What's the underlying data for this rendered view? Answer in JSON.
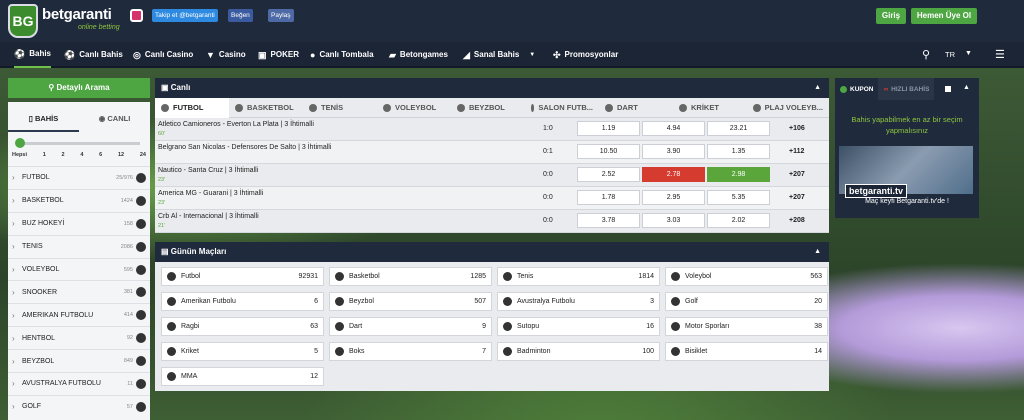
{
  "brand": {
    "name": "betgaranti",
    "tagline": "online betting",
    "badge": "BG"
  },
  "social": {
    "twitter": "Takip et @betgaranti",
    "facebook": "Beğen",
    "share": "Paylaş"
  },
  "auth": {
    "login": "Giriş",
    "register": "Hemen Üye Ol"
  },
  "nav": {
    "items": [
      "Bahis",
      "Canlı Bahis",
      "Canlı Casino",
      "Casino",
      "POKER",
      "Canlı Tombala",
      "Betongames",
      "Sanal Bahis",
      "Promosyonlar"
    ],
    "lang": "TR"
  },
  "left": {
    "search": "Detaylı Arama",
    "tabs": [
      "BAHİS",
      "CANLI"
    ],
    "ticks": [
      "Hepsi",
      "1",
      "2",
      "4",
      "6",
      "12",
      "24"
    ],
    "sports": [
      {
        "name": "FUTBOL",
        "count": "25/976"
      },
      {
        "name": "BASKETBOL",
        "count": "1424"
      },
      {
        "name": "BUZ HOKEYİ",
        "count": "158"
      },
      {
        "name": "TENIS",
        "count": "2086"
      },
      {
        "name": "VOLEYBOL",
        "count": "595"
      },
      {
        "name": "SNOOKER",
        "count": "381"
      },
      {
        "name": "AMERIKAN FUTBOLU",
        "count": "414"
      },
      {
        "name": "HENTBOL",
        "count": "92"
      },
      {
        "name": "BEYZBOL",
        "count": "849"
      },
      {
        "name": "AVUSTRALYA FUTBOLU",
        "count": "11"
      },
      {
        "name": "GOLF",
        "count": "57"
      }
    ]
  },
  "live": {
    "title": "Canlı",
    "tabs": [
      "FUTBOL",
      "BASKETBOL",
      "TENİS",
      "VOLEYBOL",
      "BEYZBOL",
      "SALON FUTB...",
      "DART",
      "KRİKET",
      "PLAJ VOLEYB..."
    ],
    "matches": [
      {
        "name": "Atletico Camioneros - Everton La Plata | 3 İhtimalli",
        "minute": "60'",
        "score": "1:0",
        "odds": [
          "1.19",
          "4.94",
          "23.21"
        ],
        "more": "+106"
      },
      {
        "name": "Belgrano San Nicolas - Defensores De Salto | 3 İhtimalli",
        "minute": "",
        "score": "0:1",
        "odds": [
          "10.50",
          "3.90",
          "1.35"
        ],
        "more": "+112"
      },
      {
        "name": "Nautico - Santa Cruz | 3 İhtimalli",
        "minute": "23'",
        "score": "0:0",
        "odds": [
          "2.52",
          "2.78",
          "2.98"
        ],
        "more": "+207"
      },
      {
        "name": "America MG - Guarani | 3 İhtimalli",
        "minute": "23'",
        "score": "0:0",
        "odds": [
          "1.78",
          "2.95",
          "5.35"
        ],
        "more": "+207"
      },
      {
        "name": "Crb Al - Internacional | 3 İhtimalli",
        "minute": "21'",
        "score": "0:0",
        "odds": [
          "3.78",
          "3.03",
          "2.02"
        ],
        "more": "+208"
      }
    ]
  },
  "today": {
    "title": "Günün Maçları",
    "items": [
      {
        "name": "Futbol",
        "count": "92931"
      },
      {
        "name": "Basketbol",
        "count": "1285"
      },
      {
        "name": "Tenis",
        "count": "1814"
      },
      {
        "name": "Voleybol",
        "count": "563"
      },
      {
        "name": "Amerikan Futbolu",
        "count": "6"
      },
      {
        "name": "Beyzbol",
        "count": "507"
      },
      {
        "name": "Avustralya Futbolu",
        "count": "3"
      },
      {
        "name": "Golf",
        "count": "20"
      },
      {
        "name": "Ragbi",
        "count": "63"
      },
      {
        "name": "Dart",
        "count": "9"
      },
      {
        "name": "Sutopu",
        "count": "16"
      },
      {
        "name": "Motor Sporları",
        "count": "38"
      },
      {
        "name": "Kriket",
        "count": "5"
      },
      {
        "name": "Boks",
        "count": "7"
      },
      {
        "name": "Badminton",
        "count": "100"
      },
      {
        "name": "Bisiklet",
        "count": "14"
      },
      {
        "name": "MMA",
        "count": "12"
      }
    ]
  },
  "coupon": {
    "tabs": [
      "KUPON",
      "HIZLI BAHİS"
    ],
    "message": "Bahis yapabilmek en az bir seçim yapmalısınız",
    "tv": "betgaranti.tv",
    "footer": "Maç keyfi Betgaranti.tv'de !"
  },
  "colors": {
    "accent": "#4da642",
    "header": "#1f2a3c",
    "odd_down": "#d63b30",
    "odd_up": "#5aa63b"
  }
}
